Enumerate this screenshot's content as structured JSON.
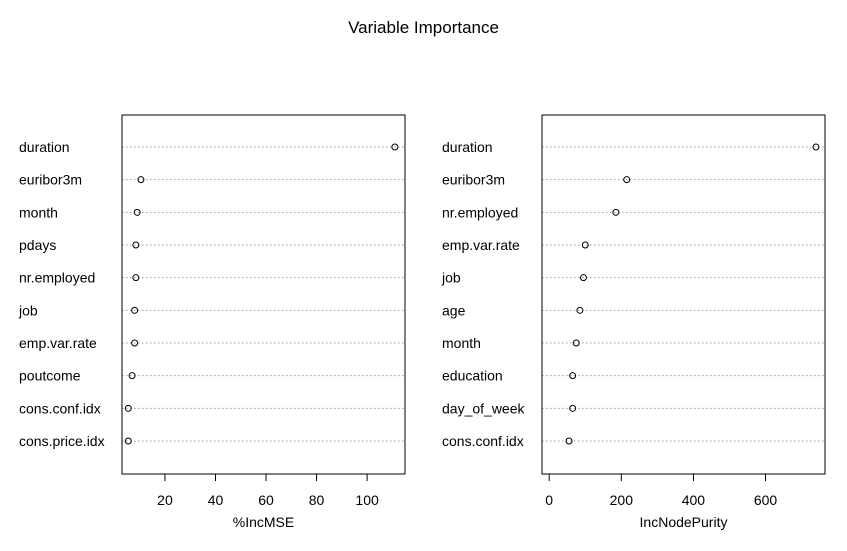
{
  "title": "Variable Importance",
  "chart_data": [
    {
      "type": "scatter",
      "subtype": "dotchart",
      "xlabel": "%IncMSE",
      "ylabel": "",
      "xlim": [
        3,
        115
      ],
      "xticks": [
        20,
        40,
        60,
        80,
        100
      ],
      "grid": "horizontal dotted",
      "categories": [
        "duration",
        "euribor3m",
        "month",
        "pdays",
        "nr.employed",
        "job",
        "emp.var.rate",
        "poutcome",
        "cons.conf.idx",
        "cons.price.idx"
      ],
      "values": [
        111,
        10.5,
        9,
        8.5,
        8.5,
        8,
        8,
        7,
        5.5,
        5.5
      ]
    },
    {
      "type": "scatter",
      "subtype": "dotchart",
      "xlabel": "IncNodePurity",
      "ylabel": "",
      "xlim": [
        -20,
        765
      ],
      "xticks": [
        0,
        200,
        400,
        600
      ],
      "grid": "horizontal dotted",
      "categories": [
        "duration",
        "euribor3m",
        "nr.employed",
        "emp.var.rate",
        "job",
        "age",
        "month",
        "education",
        "day_of_week",
        "cons.conf.idx"
      ],
      "values": [
        740,
        215,
        185,
        100,
        95,
        85,
        75,
        65,
        65,
        55
      ]
    }
  ]
}
